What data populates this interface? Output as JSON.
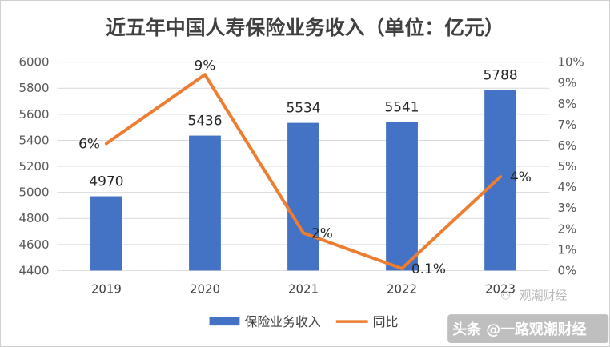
{
  "chart_data": {
    "type": "bar+line",
    "title": "近五年中国人寿保险业务收入（单位：亿元）",
    "categories": [
      "2019",
      "2020",
      "2021",
      "2022",
      "2023"
    ],
    "series": [
      {
        "name": "保险业务收入",
        "type": "bar",
        "axis": "left",
        "color": "#4472C4",
        "values": [
          4970,
          5436,
          5534,
          5541,
          5788
        ],
        "labels": [
          "4970",
          "5436",
          "5534",
          "5541",
          "5788"
        ]
      },
      {
        "name": "同比",
        "type": "line",
        "axis": "right",
        "color": "#ED7D31",
        "values": [
          6.1,
          9.4,
          1.8,
          0.1,
          4.5
        ],
        "labels": [
          "6%",
          "9%",
          "2%",
          "0.1%",
          "4%"
        ]
      }
    ],
    "y_left": {
      "min": 4400,
      "max": 6000,
      "step": 200,
      "ticks": [
        "4400",
        "4600",
        "4800",
        "5000",
        "5200",
        "5400",
        "5600",
        "5800",
        "6000"
      ]
    },
    "y_right": {
      "min": 0,
      "max": 10,
      "step": 1,
      "ticks": [
        "0%",
        "1%",
        "2%",
        "3%",
        "4%",
        "5%",
        "6%",
        "7%",
        "8%",
        "9%",
        "10%"
      ]
    },
    "grid": true,
    "legend_position": "bottom"
  },
  "watermark": {
    "top_text": "观潮财经",
    "bottom_text": "头条 @一路观潮财经"
  }
}
